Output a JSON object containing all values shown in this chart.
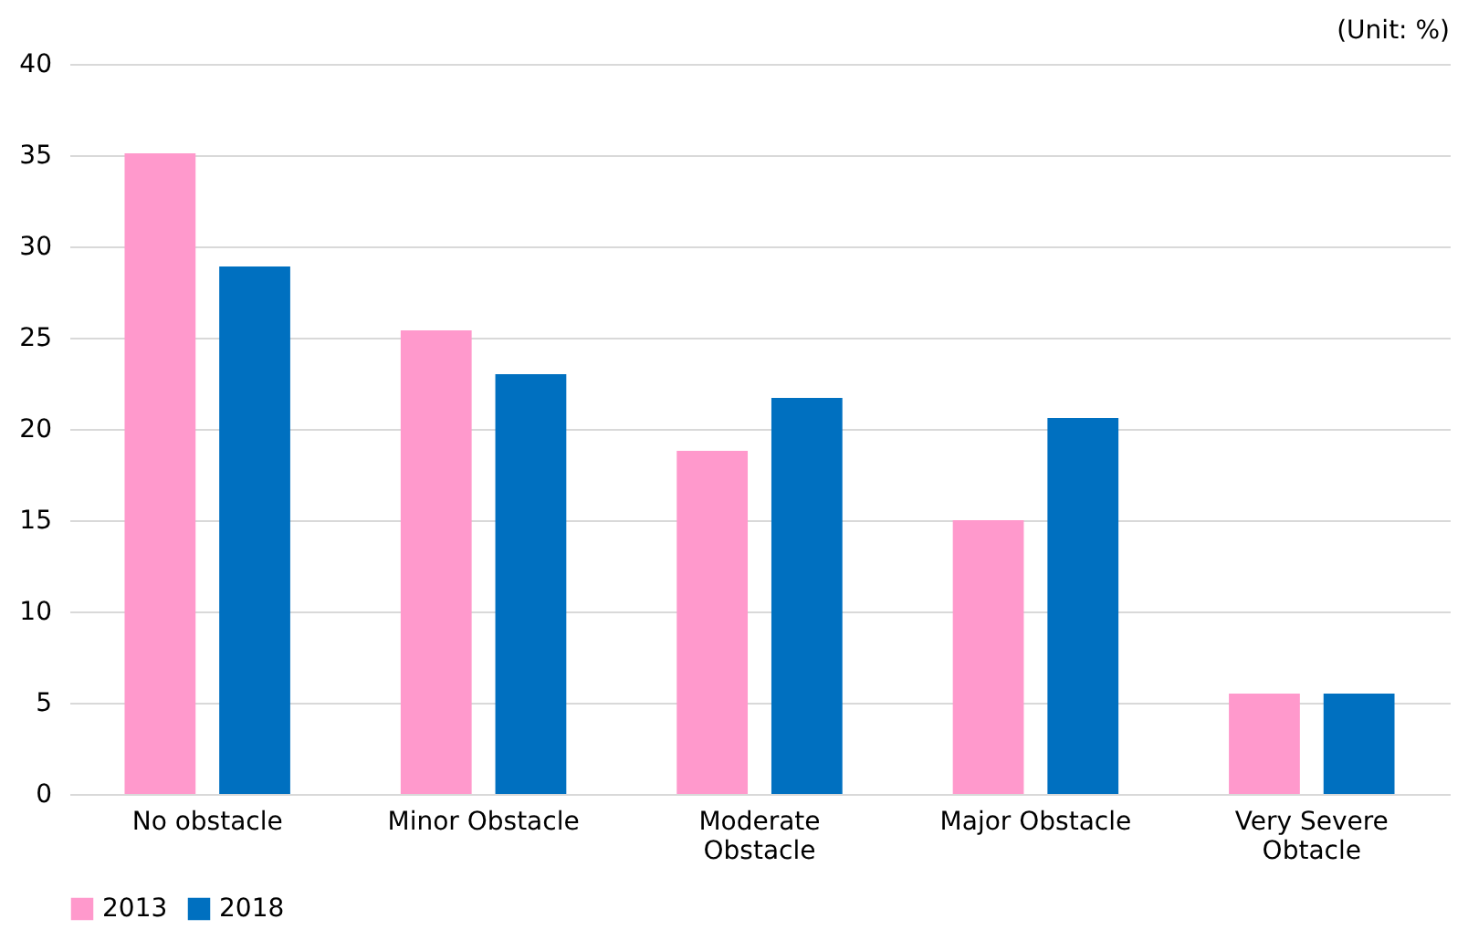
{
  "chart_data": {
    "type": "bar",
    "categories": [
      "No obstacle",
      "Minor Obstacle",
      "Moderate Obstacle",
      "Major Obstacle",
      "Very Severe Obtacle"
    ],
    "series": [
      {
        "name": "2013",
        "color": "#ff99cc",
        "values": [
          35.1,
          25.4,
          18.8,
          15.0,
          5.5
        ]
      },
      {
        "name": "2018",
        "color": "#0070c0",
        "values": [
          28.9,
          23.0,
          21.7,
          20.6,
          5.5
        ]
      }
    ],
    "ylim": [
      0,
      40
    ],
    "yticks": [
      0,
      5,
      10,
      15,
      20,
      25,
      30,
      35,
      40
    ],
    "grid": "y",
    "legend": "bottom",
    "annotations": [
      "(Unit: %)"
    ]
  }
}
